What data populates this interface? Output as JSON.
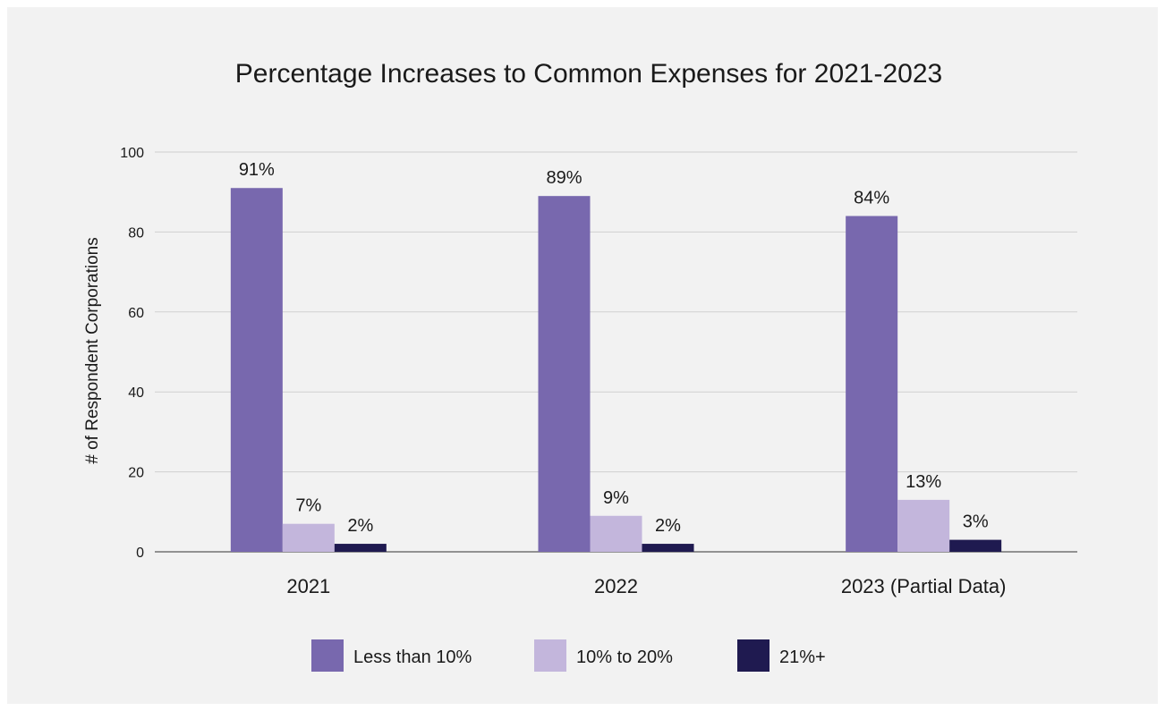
{
  "chart_data": {
    "type": "bar",
    "title": "Percentage Increases to Common Expenses for 2021-2023",
    "xlabel": "",
    "ylabel": "# of Respondent Corporations",
    "ylim": [
      0,
      100
    ],
    "yticks": [
      0,
      20,
      40,
      60,
      80,
      100
    ],
    "grid": true,
    "legend_position": "bottom",
    "categories": [
      "2021",
      "2022",
      "2023 (Partial Data)"
    ],
    "series": [
      {
        "name": "Less than 10%",
        "color": "#7868ae",
        "values": [
          91,
          89,
          84
        ],
        "labels": [
          "91%",
          "89%",
          "84%"
        ]
      },
      {
        "name": "10% to 20%",
        "color": "#c3b6dc",
        "values": [
          7,
          9,
          13
        ],
        "labels": [
          "7%",
          "9%",
          "13%"
        ]
      },
      {
        "name": "21%+",
        "color": "#1f1a50",
        "values": [
          2,
          2,
          3
        ],
        "labels": [
          "2%",
          "2%",
          "3%"
        ]
      }
    ]
  }
}
